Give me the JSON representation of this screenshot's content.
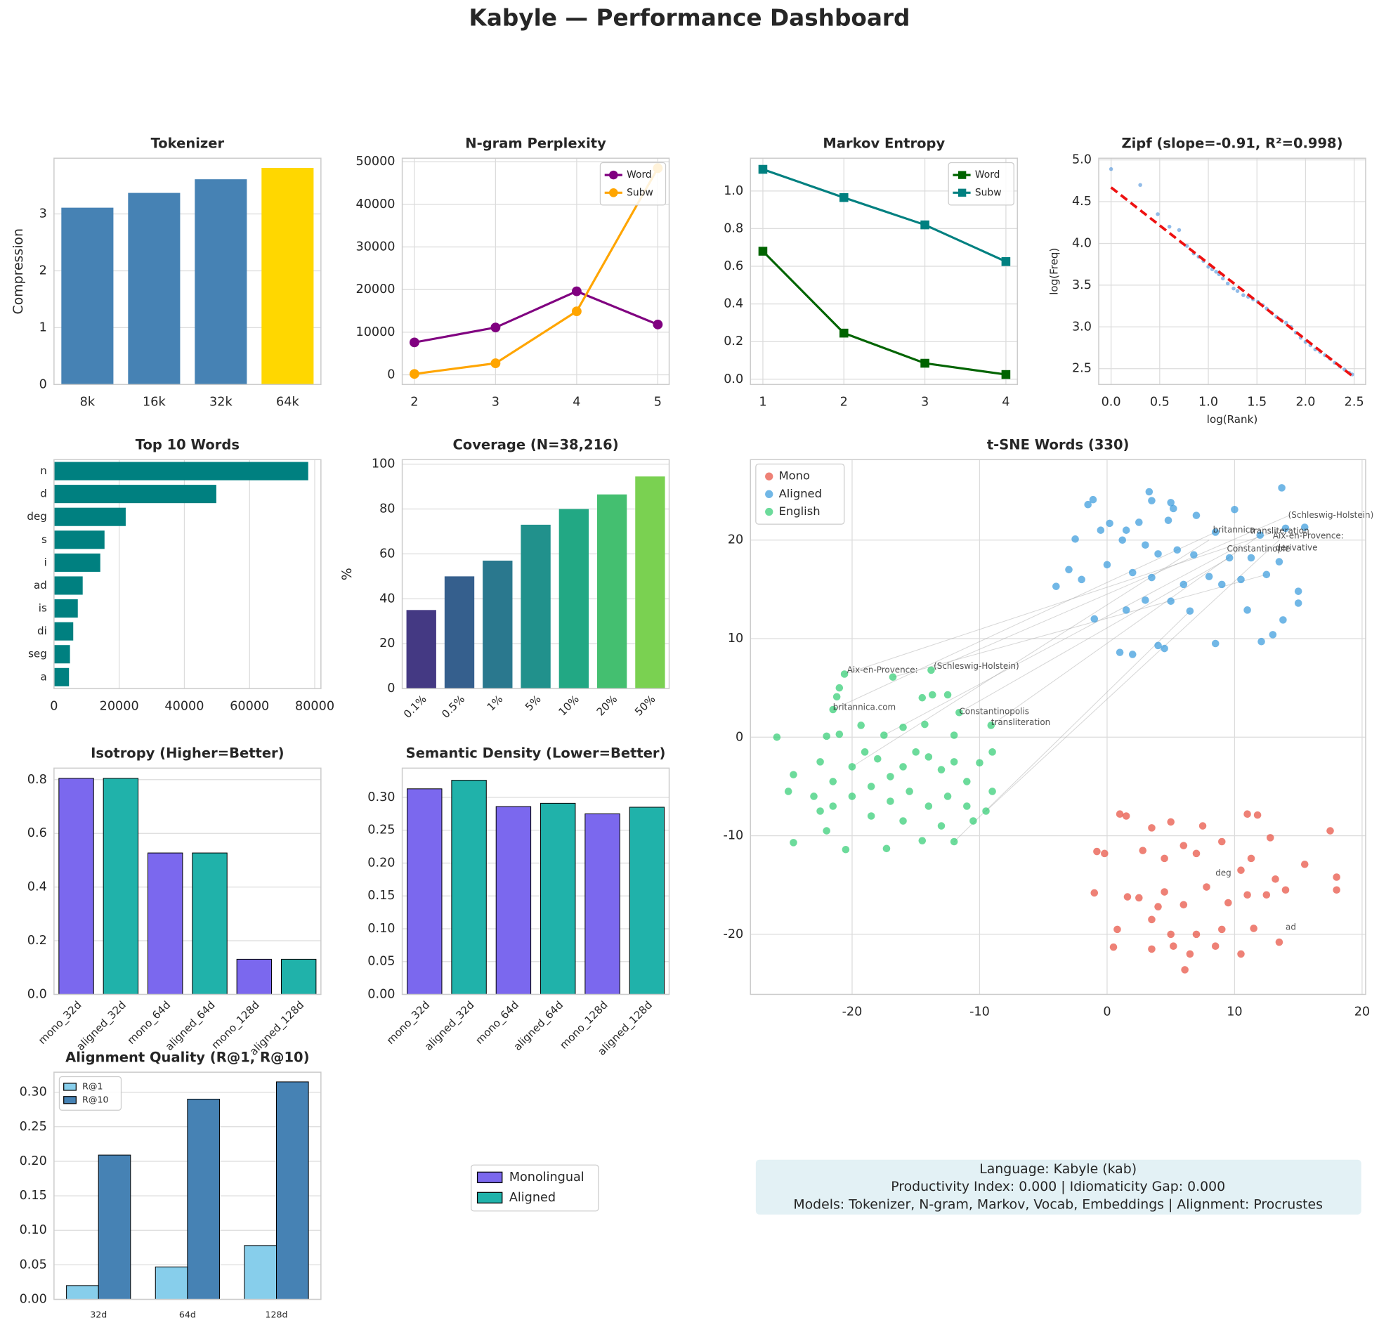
{
  "title": "Kabyle — Performance Dashboard",
  "chart_data": [
    {
      "type": "bar",
      "title": "Tokenizer",
      "categories": [
        "8k",
        "16k",
        "32k",
        "64k"
      ],
      "values": [
        3.11,
        3.37,
        3.61,
        3.81
      ],
      "colors": [
        "#4682b4",
        "#4682b4",
        "#4682b4",
        "#ffd700"
      ],
      "ylabel": "Compression",
      "ylim": [
        0,
        3.98
      ],
      "yticks": [
        0,
        1,
        2,
        3
      ],
      "grid": true
    },
    {
      "type": "line",
      "title": "N-gram Perplexity",
      "x": [
        2,
        3,
        4,
        5
      ],
      "xlim": [
        1.85,
        5.14
      ],
      "xticks": [
        2,
        3,
        4,
        5
      ],
      "ylim": [
        -2280,
        50830
      ],
      "yticks": [
        0,
        10000,
        20000,
        30000,
        40000,
        50000
      ],
      "grid": true,
      "marker": "circle",
      "legend": "upper right",
      "series": [
        {
          "name": "Word",
          "color": "#800080",
          "values": [
            7600,
            11100,
            19600,
            11800
          ]
        },
        {
          "name": "Subw",
          "color": "#ffa500",
          "values": [
            200,
            2700,
            14900,
            48500
          ]
        }
      ]
    },
    {
      "type": "line",
      "title": "Markov Entropy",
      "x": [
        1,
        2,
        3,
        4
      ],
      "xlim": [
        0.847,
        4.142
      ],
      "xticks": [
        1,
        2,
        3,
        4
      ],
      "ylim": [
        -0.028,
        1.174
      ],
      "yticks": [
        {
          "value": 0,
          "label": "0.0"
        },
        0.2,
        0.4,
        0.6,
        0.8,
        {
          "value": 1,
          "label": "1.0"
        }
      ],
      "grid": true,
      "marker": "square",
      "legend": "upper right",
      "series": [
        {
          "name": "Word",
          "color": "#006400",
          "values": [
            0.68,
            0.245,
            0.085,
            0.025
          ]
        },
        {
          "name": "Subw",
          "color": "#008080",
          "values": [
            1.115,
            0.965,
            0.82,
            0.625
          ]
        }
      ]
    },
    {
      "type": "scatter",
      "title": "Zipf (slope=-0.91, R²=0.998)",
      "xlabel": "log(Rank)",
      "ylabel": "log(Freq)",
      "xlim": [
        -0.127,
        2.618
      ],
      "xticks": [
        {
          "value": 0,
          "label": "0.0"
        },
        0.5,
        {
          "value": 1,
          "label": "1.0"
        },
        1.5,
        {
          "value": 2,
          "label": "2.0"
        },
        2.5
      ],
      "ylim": [
        2.31,
        5.02
      ],
      "yticks": [
        2.5,
        {
          "value": 3,
          "label": "3.0"
        },
        3.5,
        {
          "value": 4,
          "label": "4.0"
        },
        4.5,
        {
          "value": 5,
          "label": "5.0"
        }
      ],
      "grid": true,
      "series": [
        {
          "color": "#4a90d9",
          "alpha": 0.6,
          "x": [
            0,
            0.3,
            0.48,
            0.6,
            0.7,
            0.78,
            0.85,
            0.9,
            0.95,
            1.0,
            1.04,
            1.08,
            1.11,
            1.15,
            1.2,
            1.26,
            1.3,
            1.36,
            1.41,
            1.46,
            1.51,
            1.56,
            1.6,
            1.65,
            1.7,
            1.75,
            1.8,
            1.85,
            1.9,
            1.95,
            2.0,
            2.05,
            2.1,
            2.15,
            2.2,
            2.25,
            2.3,
            2.35,
            2.4,
            2.45,
            2.48
          ],
          "values": [
            4.89,
            4.7,
            4.35,
            4.2,
            4.16,
            3.97,
            3.88,
            3.84,
            3.79,
            3.72,
            3.69,
            3.66,
            3.63,
            3.58,
            3.52,
            3.46,
            3.43,
            3.38,
            3.36,
            3.33,
            3.3,
            3.26,
            3.22,
            3.17,
            3.12,
            3.08,
            3.05,
            3.0,
            2.93,
            2.87,
            2.82,
            2.78,
            2.73,
            2.7,
            2.66,
            2.62,
            2.57,
            2.53,
            2.49,
            2.45,
            2.43
          ]
        }
      ],
      "fit": {
        "color": "#ee1111",
        "x": [
          0,
          2.5
        ],
        "values": [
          4.67,
          2.395
        ]
      }
    },
    {
      "type": "barh",
      "title": "Top 10 Words",
      "categories": [
        "n",
        "d",
        "deg",
        "s",
        "i",
        "ad",
        "is",
        "di",
        "seg",
        "a"
      ],
      "values": [
        78000,
        49800,
        22000,
        15500,
        14200,
        8800,
        7300,
        5900,
        4900,
        4600
      ],
      "color": "#008080",
      "xlim": [
        0,
        81900
      ],
      "xticks": [
        0,
        20000,
        40000,
        60000,
        80000
      ],
      "grid": true
    },
    {
      "type": "bar",
      "title": "Coverage (N=38,216)",
      "categories": [
        "0.1%",
        "0.5%",
        "1%",
        "5%",
        "10%",
        "20%",
        "50%"
      ],
      "values": [
        35,
        50,
        57,
        73,
        80,
        86.5,
        94.5
      ],
      "colors": [
        "#443983",
        "#355f8d",
        "#2a788e",
        "#21918c",
        "#22a884",
        "#44bf70",
        "#7ad151"
      ],
      "ylabel": "%",
      "ylim": [
        0,
        102
      ],
      "yticks": [
        0,
        20,
        40,
        60,
        80,
        100
      ],
      "grid": true,
      "rotation": 45
    },
    {
      "type": "scatter",
      "title": "t-SNE Words (330)",
      "xlim": [
        -27.97,
        20.28
      ],
      "xticks": [
        -20,
        -10,
        0,
        10,
        20
      ],
      "ylim": [
        -26.1,
        28.16
      ],
      "yticks": [
        -20,
        -10,
        0,
        10,
        20
      ],
      "grid": true,
      "legend": "upper left",
      "series": [
        {
          "name": "Mono",
          "color": "#e74c3c",
          "alpha": 0.7,
          "x": [
            1,
            1.5,
            3.5,
            5,
            7.5,
            11,
            11.8,
            12.8,
            -0.8,
            -0.2,
            2.8,
            4.5,
            6,
            7,
            9,
            11.3,
            10.5,
            13.2,
            15.5,
            17.5,
            18,
            18,
            -1,
            1.6,
            2.5,
            4.5,
            6,
            7.8,
            9.5,
            11,
            12.5,
            14,
            0.8,
            3.5,
            5,
            7,
            9,
            11.5,
            13.5,
            0.5,
            3.5,
            5.2,
            6.5,
            8.5,
            10.5,
            6.1,
            4
          ],
          "values": [
            -7.8,
            -8,
            -9.2,
            -8.6,
            -9,
            -7.8,
            -7.9,
            -10.2,
            -11.6,
            -11.8,
            -11.5,
            -12.3,
            -11,
            -11.8,
            -10.6,
            -12.3,
            -13.5,
            -14.4,
            -12.9,
            -9.5,
            -14.2,
            -15.5,
            -15.8,
            -16.2,
            -16.3,
            -15.7,
            -17,
            -15.2,
            -16.8,
            -16,
            -16,
            -15.5,
            -19.5,
            -18.5,
            -20,
            -20,
            -19.5,
            -19.4,
            -20.8,
            -21.3,
            -21.5,
            -21.2,
            -22,
            -21.2,
            -22,
            -23.6,
            -17.2
          ]
        },
        {
          "name": "Aligned",
          "color": "#3498db",
          "alpha": 0.7,
          "x": [
            3.3,
            3.5,
            5.2,
            5,
            -1.5,
            -1.1,
            10,
            13.7,
            0.2,
            1.5,
            2.5,
            4.8,
            7,
            8.5,
            12,
            14,
            15.5,
            -2.5,
            -0.5,
            1.2,
            3,
            4,
            5.5,
            6.8,
            9.6,
            11.3,
            13.5,
            -3,
            -2,
            0,
            2,
            3.5,
            6,
            8,
            10.5,
            12.5,
            -4,
            -1,
            1.5,
            3,
            5,
            6.5,
            9,
            11,
            13.8,
            15,
            15,
            12.1,
            13,
            1,
            2,
            4,
            4.5,
            8.5
          ],
          "values": [
            24.9,
            24,
            23.2,
            23.8,
            23.6,
            24.1,
            23.1,
            25.3,
            21.7,
            21,
            21.8,
            22,
            22.5,
            20.8,
            20.5,
            21.2,
            21.3,
            20.1,
            21,
            20,
            19.5,
            18.6,
            19,
            18.5,
            18.2,
            18.2,
            17.8,
            17,
            16,
            17.5,
            16.7,
            16.2,
            15.5,
            16.3,
            16,
            16.5,
            15.3,
            12,
            12.9,
            13.9,
            13.8,
            12.8,
            15.5,
            12.9,
            11.9,
            13.6,
            14.8,
            9.7,
            10.4,
            8.6,
            8.4,
            9.3,
            9,
            9.5
          ]
        },
        {
          "name": "English",
          "color": "#2ecc71",
          "alpha": 0.7,
          "x": [
            -25.9,
            -24.6,
            -25,
            -24.6,
            -20.6,
            -21,
            -21.2,
            -21.5,
            -22,
            -21,
            -19.3,
            -17.5,
            -16,
            -14.3,
            -13.7,
            -14.5,
            -12.5,
            -16.8,
            -13.8,
            -11.6,
            -9.1,
            -12,
            -22.5,
            -21.5,
            -20,
            -19,
            -18,
            -17,
            -16,
            -15,
            -14,
            -13,
            -12,
            -11,
            -10,
            -9,
            -23,
            -21.5,
            -20,
            -18.5,
            -17,
            -15.5,
            -14,
            -12.5,
            -11,
            -9.5,
            -9,
            -22.5,
            -22,
            -20.5,
            -18.5,
            -17.3,
            -16,
            -14.5,
            -13,
            -12,
            -10.5
          ],
          "values": [
            0,
            -3.8,
            -5.5,
            -10.7,
            6.4,
            5,
            4.1,
            2.8,
            0.1,
            0.3,
            1.2,
            0.2,
            1,
            1.3,
            4.3,
            4,
            4.3,
            6.1,
            6.8,
            2.5,
            1.2,
            0.2,
            -2.5,
            -4.5,
            -3,
            -1.5,
            -2.2,
            -4,
            -3,
            -1.5,
            -2,
            -3.3,
            -2.5,
            -4.5,
            -2.6,
            -1.5,
            -6,
            -7,
            -6,
            -5,
            -6.5,
            -5.5,
            -7,
            -6,
            -7,
            -7.5,
            -5.5,
            -7.5,
            -9.5,
            -11.4,
            -8,
            -11.3,
            -8.5,
            -10.5,
            -9,
            -10.6,
            -8.5
          ]
        }
      ],
      "links": [
        {
          "x": [
            -20.6,
            14
          ],
          "values": [
            6.4,
            21.2
          ]
        },
        {
          "x": [
            -21.5,
            8.5
          ],
          "values": [
            2.8,
            20.8
          ]
        },
        {
          "x": [
            -13.8,
            14.3
          ],
          "values": [
            6.8,
            22.5
          ]
        },
        {
          "x": [
            -11.6,
            9.6
          ],
          "values": [
            2.5,
            18.2
          ]
        },
        {
          "x": [
            -9.1,
            12
          ],
          "values": [
            1.2,
            20.5
          ]
        },
        {
          "x": [
            -12,
            6.5
          ],
          "values": [
            -10.6,
            12.8
          ]
        },
        {
          "x": [
            -9.5,
            13.5
          ],
          "values": [
            -7.5,
            20
          ]
        },
        {
          "x": [
            -17.5,
            10.5
          ],
          "values": [
            0.2,
            19.5
          ]
        },
        {
          "x": [
            -20,
            8
          ],
          "values": [
            -3,
            20
          ]
        },
        {
          "x": [
            -16.8,
            12.5
          ],
          "values": [
            6.1,
            16.5
          ]
        }
      ],
      "annotations": [
        {
          "text": "(Schleswig-Holstein)",
          "x": 14.2,
          "y": 22.5,
          "color": "#3498db"
        },
        {
          "text": "britannica",
          "x": 8.3,
          "y": 21,
          "color": "#3498db"
        },
        {
          "text": "transliteration",
          "x": 11.2,
          "y": 20.9,
          "color": "#3498db"
        },
        {
          "text": "Aix-en-Provence:",
          "x": 13,
          "y": 20.4,
          "color": "#3498db"
        },
        {
          "text": "Constantinople",
          "x": 9.4,
          "y": 19.1,
          "color": "#3498db"
        },
        {
          "text": "derivative",
          "x": 13.2,
          "y": 19.2,
          "color": "#3498db"
        },
        {
          "text": "Aix-en-Provence:",
          "x": -20.4,
          "y": 6.8,
          "color": "#2ecc71"
        },
        {
          "text": "(Schleswig-Holstein)",
          "x": -13.6,
          "y": 7.2,
          "color": "#2ecc71"
        },
        {
          "text": "britannica.com",
          "x": -21.5,
          "y": 3,
          "color": "#2ecc71"
        },
        {
          "text": "Constantinopolis",
          "x": -11.6,
          "y": 2.6,
          "color": "#2ecc71"
        },
        {
          "text": "transliteration",
          "x": -9.1,
          "y": 1.5,
          "color": "#2ecc71"
        },
        {
          "text": "deg",
          "x": 8.5,
          "y": -13.8,
          "color": "#e74c3c"
        },
        {
          "text": "ad",
          "x": 14,
          "y": -19.3,
          "color": "#e74c3c"
        }
      ]
    },
    {
      "type": "bar",
      "title": "Isotropy (Higher=Better)",
      "categories": [
        "mono_32d",
        "aligned_32d",
        "mono_64d",
        "aligned_64d",
        "mono_128d",
        "aligned_128d"
      ],
      "values": [
        0.805,
        0.805,
        0.527,
        0.527,
        0.131,
        0.131
      ],
      "colors": [
        "#7b68ee",
        "#20b2aa",
        "#7b68ee",
        "#20b2aa",
        "#7b68ee",
        "#20b2aa"
      ],
      "edgecolor": "#000000",
      "ylim": [
        0,
        0.843
      ],
      "yticks": [
        {
          "value": 0,
          "label": "0.0"
        },
        0.2,
        0.4,
        0.6,
        0.8
      ],
      "grid": true,
      "rotation": 45
    },
    {
      "type": "bar",
      "title": "Semantic Density (Lower=Better)",
      "categories": [
        "mono_32d",
        "aligned_32d",
        "mono_64d",
        "aligned_64d",
        "mono_128d",
        "aligned_128d"
      ],
      "values": [
        0.313,
        0.326,
        0.286,
        0.291,
        0.275,
        0.285
      ],
      "colors": [
        "#7b68ee",
        "#20b2aa",
        "#7b68ee",
        "#20b2aa",
        "#7b68ee",
        "#20b2aa"
      ],
      "edgecolor": "#000000",
      "ylim": [
        0,
        0.3445
      ],
      "yticks": [
        {
          "value": 0,
          "label": "0.00"
        },
        0.05,
        {
          "value": 0.1,
          "label": "0.10"
        },
        0.15,
        {
          "value": 0.2,
          "label": "0.20"
        },
        0.25,
        {
          "value": 0.3,
          "label": "0.30"
        }
      ],
      "grid": true,
      "rotation": 45
    },
    {
      "type": "grouped_bar",
      "title": "Alignment Quality (R@1, R@10)",
      "categories": [
        "32d",
        "64d",
        "128d"
      ],
      "edgecolor": "#000000",
      "ylim": [
        0,
        0.329
      ],
      "yticks": [
        {
          "value": 0,
          "label": "0.00"
        },
        0.05,
        {
          "value": 0.1,
          "label": "0.10"
        },
        0.15,
        {
          "value": 0.2,
          "label": "0.20"
        },
        0.25,
        {
          "value": 0.3,
          "label": "0.30"
        }
      ],
      "grid": true,
      "legend": "upper left",
      "series": [
        {
          "name": "R@1",
          "color": "#87ceeb",
          "values": [
            0.02,
            0.047,
            0.078
          ]
        },
        {
          "name": "R@10",
          "color": "#4682b4",
          "values": [
            0.209,
            0.29,
            0.315
          ]
        }
      ]
    }
  ],
  "shared_legend": {
    "entries": [
      {
        "name": "Monolingual",
        "color": "#7b68ee"
      },
      {
        "name": "Aligned",
        "color": "#20b2aa"
      }
    ]
  },
  "info_box": {
    "color": "#e3f1f5",
    "lines": [
      "Language: Kabyle (kab)",
      "Productivity Index: 0.000  |  Idiomaticity Gap: 0.000",
      "Models: Tokenizer, N-gram, Markov, Vocab, Embeddings  |  Alignment: Procrustes"
    ]
  }
}
